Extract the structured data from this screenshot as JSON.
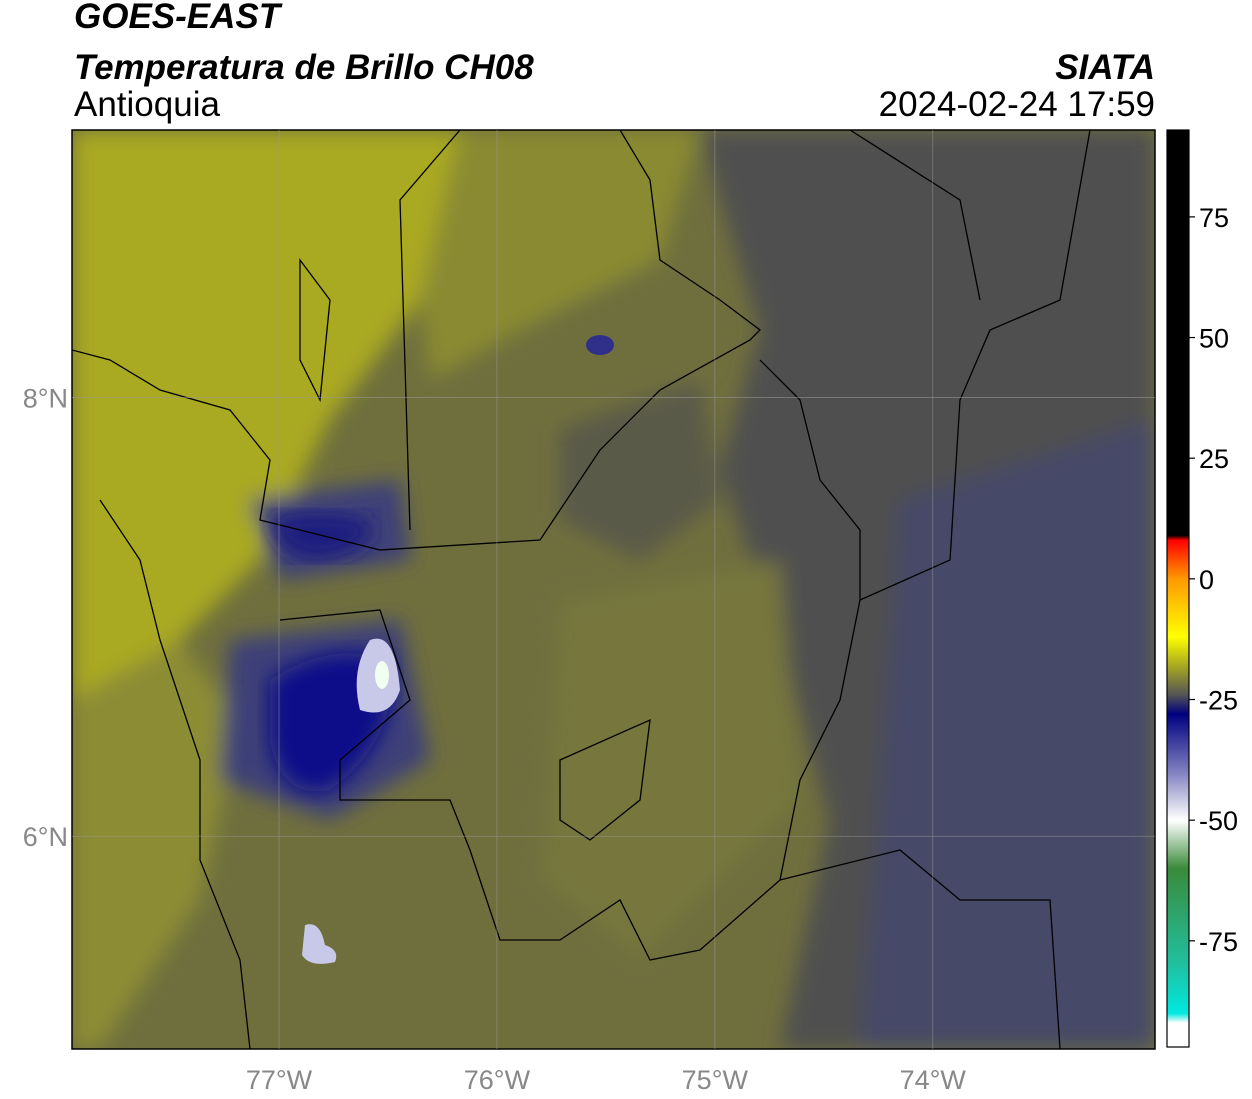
{
  "chart_data": {
    "type": "map",
    "title": "GOES-EAST",
    "subtitle": "Temperatura de Brillo CH08",
    "region": "Antioquia",
    "source": "SIATA",
    "datetime": "2024-02-24 17:59",
    "xlim": [
      -77.95,
      -72.98
    ],
    "ylim": [
      5.03,
      9.22
    ],
    "xticks": [
      {
        "value": -77,
        "label": "77°W"
      },
      {
        "value": -76,
        "label": "76°W"
      },
      {
        "value": -75,
        "label": "75°W"
      },
      {
        "value": -74,
        "label": "74°W"
      }
    ],
    "yticks": [
      {
        "value": 6,
        "label": "6°N"
      },
      {
        "value": 8,
        "label": "8°N"
      }
    ],
    "grid": true,
    "colorbar": {
      "range": [
        -97,
        93
      ],
      "ticks": [
        75,
        50,
        25,
        0,
        -25,
        -50,
        -75
      ],
      "stops": [
        {
          "value": 93,
          "color": "#000000"
        },
        {
          "value": 9,
          "color": "#000000"
        },
        {
          "value": 8,
          "color": "#ff0000"
        },
        {
          "value": 0,
          "color": "#ff9900"
        },
        {
          "value": -12,
          "color": "#ffff00"
        },
        {
          "value": -18,
          "color": "#a8a820"
        },
        {
          "value": -24,
          "color": "#555555"
        },
        {
          "value": -28,
          "color": "#000080"
        },
        {
          "value": -40,
          "color": "#8080c0"
        },
        {
          "value": -50,
          "color": "#ffffff"
        },
        {
          "value": -60,
          "color": "#3a8a3a"
        },
        {
          "value": -80,
          "color": "#20c0a0"
        },
        {
          "value": -90,
          "color": "#00e8e0"
        },
        {
          "value": -92,
          "color": "#ffffff"
        },
        {
          "value": -97,
          "color": "#ffffff"
        }
      ]
    }
  }
}
